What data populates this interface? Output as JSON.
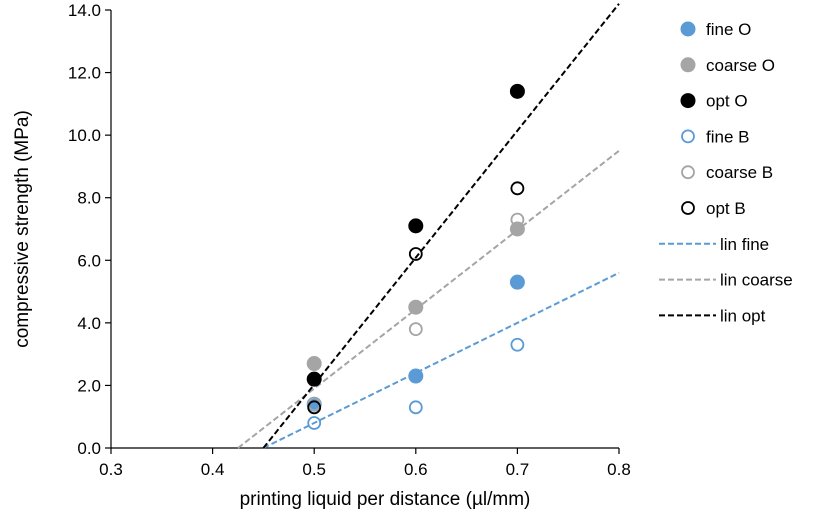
{
  "chart_data": {
    "type": "scatter",
    "title": "",
    "xlabel": "printing liquid per distance (µl/mm)",
    "ylabel": "compressive strength (MPa)",
    "xlim": [
      0.3,
      0.8
    ],
    "ylim": [
      0.0,
      14.0
    ],
    "x_ticks": [
      "0.3",
      "0.4",
      "0.5",
      "0.6",
      "0.7",
      "0.8"
    ],
    "y_ticks": [
      "0.0",
      "2.0",
      "4.0",
      "6.0",
      "8.0",
      "10.0",
      "12.0",
      "14.0"
    ],
    "grid": false,
    "legend_position": "right",
    "series": [
      {
        "name": "fine O",
        "marker": "filled-circle",
        "color": "#5b9bd5",
        "x": [
          0.5,
          0.6,
          0.7
        ],
        "y": [
          1.4,
          2.3,
          5.3
        ]
      },
      {
        "name": "coarse O",
        "marker": "filled-circle",
        "color": "#a5a5a5",
        "x": [
          0.5,
          0.6,
          0.7
        ],
        "y": [
          2.7,
          4.5,
          7.0
        ]
      },
      {
        "name": "opt O",
        "marker": "filled-circle",
        "color": "#000000",
        "x": [
          0.5,
          0.6,
          0.7
        ],
        "y": [
          2.2,
          7.1,
          11.4
        ]
      },
      {
        "name": "fine B",
        "marker": "open-circle",
        "color": "#5b9bd5",
        "x": [
          0.5,
          0.6,
          0.7
        ],
        "y": [
          0.8,
          1.3,
          3.3
        ]
      },
      {
        "name": "coarse B",
        "marker": "open-circle",
        "color": "#a5a5a5",
        "x": [
          0.5,
          0.6,
          0.7
        ],
        "y": [
          1.4,
          3.8,
          7.3
        ]
      },
      {
        "name": "opt B",
        "marker": "open-circle",
        "color": "#000000",
        "x": [
          0.5,
          0.6,
          0.7
        ],
        "y": [
          1.3,
          6.2,
          8.3
        ]
      }
    ],
    "trendlines": [
      {
        "name": "lin fine",
        "style": "dashed",
        "color": "#5b9bd5",
        "x": [
          0.45,
          0.8
        ],
        "y": [
          0.0,
          5.6
        ]
      },
      {
        "name": "lin coarse",
        "style": "dashed",
        "color": "#a5a5a5",
        "x": [
          0.425,
          0.8
        ],
        "y": [
          0.0,
          9.5
        ]
      },
      {
        "name": "lin opt",
        "style": "dashed",
        "color": "#000000",
        "x": [
          0.45,
          0.8
        ],
        "y": [
          0.0,
          14.2
        ]
      }
    ]
  }
}
